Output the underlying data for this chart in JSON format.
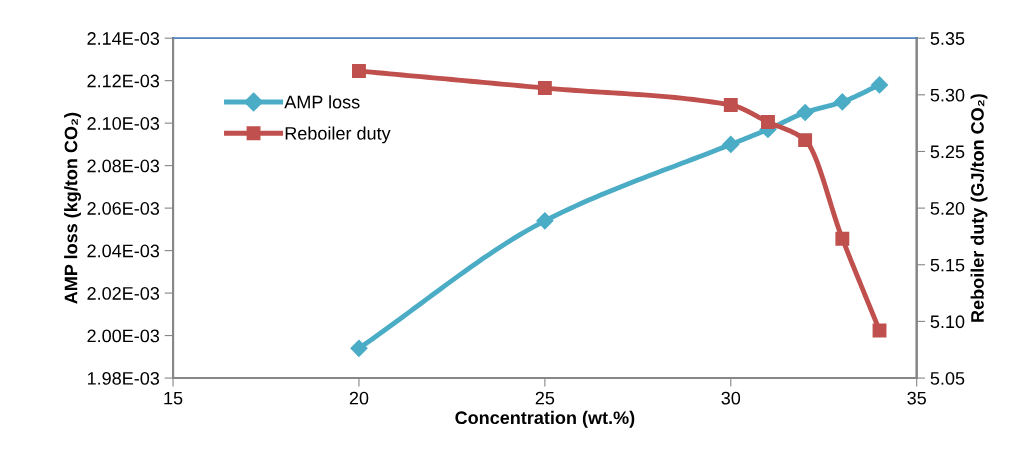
{
  "chart_data": {
    "type": "line",
    "xlabel": "Concentration (wt.%)",
    "ylabel": "AMP loss (kg/ton CO₂)",
    "y2label": "Reboiler duty (GJ/ton CO₂)",
    "x": [
      20,
      25,
      30,
      31,
      32,
      33,
      34
    ],
    "series": [
      {
        "name": "AMP loss",
        "color": "#4bacc6",
        "marker": "diamond",
        "values": [
          0.001994,
          0.002054,
          0.00209,
          0.002097,
          0.002105,
          0.00211,
          0.002118
        ]
      },
      {
        "name": "Reboiler duty",
        "color": "#c0504d",
        "marker": "square",
        "axis": "y2",
        "values": [
          5.321,
          5.306,
          5.291,
          5.276,
          5.26,
          5.173,
          5.092
        ]
      }
    ],
    "xlim": [
      15,
      35
    ],
    "xticks": [
      15,
      20,
      25,
      30,
      35
    ],
    "ylim": [
      0.00198,
      0.00214
    ],
    "yticks": [
      {
        "value": 0.00198,
        "label": "1.98E-03"
      },
      {
        "value": 0.002,
        "label": "2.00E-03"
      },
      {
        "value": 0.00202,
        "label": "2.02E-03"
      },
      {
        "value": 0.00204,
        "label": "2.04E-03"
      },
      {
        "value": 0.00206,
        "label": "2.06E-03"
      },
      {
        "value": 0.00208,
        "label": "2.08E-03"
      },
      {
        "value": 0.0021,
        "label": "2.10E-03"
      },
      {
        "value": 0.00212,
        "label": "2.12E-03"
      },
      {
        "value": 0.00214,
        "label": "2.14E-03"
      }
    ],
    "y2lim": [
      5.05,
      5.35
    ],
    "y2ticks": [
      {
        "value": 5.05,
        "label": "5.05"
      },
      {
        "value": 5.1,
        "label": "5.10"
      },
      {
        "value": 5.15,
        "label": "5.15"
      },
      {
        "value": 5.2,
        "label": "5.20"
      },
      {
        "value": 5.25,
        "label": "5.25"
      },
      {
        "value": 5.3,
        "label": "5.30"
      },
      {
        "value": 5.35,
        "label": "5.35"
      }
    ],
    "grid": false,
    "legend": "top left",
    "line_style": "solid"
  }
}
